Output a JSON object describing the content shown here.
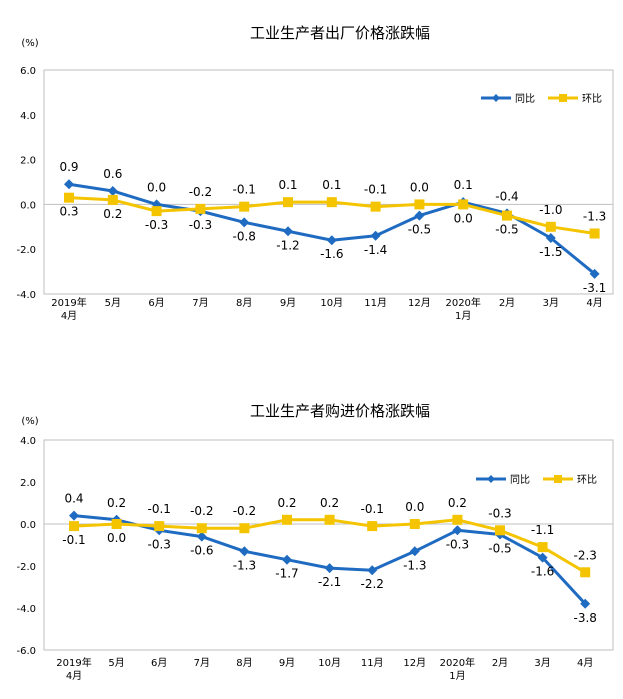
{
  "chart_data": [
    {
      "type": "line",
      "title": "工业生产者出厂价格涨跌幅",
      "unit": "(%)",
      "categories": [
        [
          "2019年",
          "4月"
        ],
        [
          "5月"
        ],
        [
          "6月"
        ],
        [
          "7月"
        ],
        [
          "8月"
        ],
        [
          "9月"
        ],
        [
          "10月"
        ],
        [
          "11月"
        ],
        [
          "12月"
        ],
        [
          "2020年",
          "1月"
        ],
        [
          "2月"
        ],
        [
          "3月"
        ],
        [
          "4月"
        ]
      ],
      "ylim": [
        -4.0,
        6.0
      ],
      "yticks": [
        "6.0",
        "4.0",
        "2.0",
        "0.0",
        "-2.0",
        "-4.0"
      ],
      "ytick_values": [
        6,
        4,
        2,
        0,
        -2,
        -4
      ],
      "legend_position": "top-right",
      "series": [
        {
          "name": "同比",
          "color": "#1f6bc1",
          "marker": "diamond",
          "values": [
            0.9,
            0.6,
            0.0,
            -0.3,
            -0.8,
            -1.2,
            -1.6,
            -1.4,
            -0.5,
            0.1,
            -0.4,
            -1.5,
            -3.1
          ],
          "labels": [
            "0.9",
            "0.6",
            "0.0",
            "-0.3",
            "-0.8",
            "-1.2",
            "-1.6",
            "-1.4",
            "-0.5",
            "0.1",
            "-0.4",
            "-1.5",
            "-3.1"
          ]
        },
        {
          "name": "环比",
          "color": "#f5c400",
          "marker": "square",
          "values": [
            0.3,
            0.2,
            -0.3,
            -0.2,
            -0.1,
            0.1,
            0.1,
            -0.1,
            0.0,
            0.0,
            -0.5,
            -1.0,
            -1.3
          ],
          "labels": [
            "0.3",
            "0.2",
            "-0.3",
            "-0.2",
            "-0.1",
            "0.1",
            "0.1",
            "-0.1",
            "0.0",
            "0.0",
            "-0.5",
            "-1.0",
            "-1.3"
          ]
        }
      ]
    },
    {
      "type": "line",
      "title": "工业生产者购进价格涨跌幅",
      "unit": "(%)",
      "categories": [
        [
          "2019年",
          "4月"
        ],
        [
          "5月"
        ],
        [
          "6月"
        ],
        [
          "7月"
        ],
        [
          "8月"
        ],
        [
          "9月"
        ],
        [
          "10月"
        ],
        [
          "11月"
        ],
        [
          "12月"
        ],
        [
          "2020年",
          "1月"
        ],
        [
          "2月"
        ],
        [
          "3月"
        ],
        [
          "4月"
        ]
      ],
      "ylim": [
        -6.0,
        4.0
      ],
      "yticks": [
        "4.0",
        "2.0",
        "0.0",
        "-2.0",
        "-4.0",
        "-6.0"
      ],
      "ytick_values": [
        4,
        2,
        0,
        -2,
        -4,
        -6
      ],
      "legend_position": "top-right",
      "series": [
        {
          "name": "同比",
          "color": "#1f6bc1",
          "marker": "diamond",
          "values": [
            0.4,
            0.2,
            -0.3,
            -0.6,
            -1.3,
            -1.7,
            -2.1,
            -2.2,
            -1.3,
            -0.3,
            -0.5,
            -1.6,
            -3.8
          ],
          "labels": [
            "0.4",
            "0.2",
            "-0.3",
            "-0.6",
            "-1.3",
            "-1.7",
            "-2.1",
            "-2.2",
            "-1.3",
            "-0.3",
            "-0.5",
            "-1.6",
            "-3.8"
          ]
        },
        {
          "name": "环比",
          "color": "#f5c400",
          "marker": "square",
          "values": [
            -0.1,
            0.0,
            -0.1,
            -0.2,
            -0.2,
            0.2,
            0.2,
            -0.1,
            0.0,
            0.2,
            -0.3,
            -1.1,
            -2.3
          ],
          "labels": [
            "-0.1",
            "0.0",
            "-0.1",
            "-0.2",
            "-0.2",
            "0.2",
            "0.2",
            "-0.1",
            "0.0",
            "0.2",
            "-0.3",
            "-1.1",
            "-2.3"
          ]
        }
      ]
    }
  ]
}
